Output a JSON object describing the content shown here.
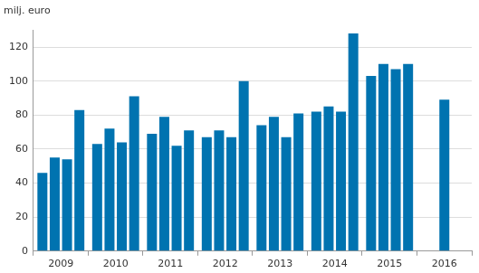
{
  "chart_data": {
    "type": "bar",
    "y_label": "milj. euro",
    "categories": [
      "2009",
      "2010",
      "2011",
      "2012",
      "2013",
      "2014",
      "2015",
      "2016"
    ],
    "series": [
      {
        "values": [
          46,
          63,
          69,
          67,
          74,
          82,
          103,
          89
        ]
      },
      {
        "values": [
          55,
          72,
          79,
          71,
          79,
          85,
          110,
          null
        ]
      },
      {
        "values": [
          54,
          64,
          62,
          67,
          67,
          82,
          107,
          null
        ]
      },
      {
        "values": [
          83,
          91,
          71,
          100,
          81,
          128,
          110,
          null
        ]
      }
    ],
    "color": "#0073b0",
    "ylim": [
      0,
      130
    ],
    "yticks": [
      0,
      20,
      40,
      60,
      80,
      100,
      120
    ],
    "grid": true
  }
}
